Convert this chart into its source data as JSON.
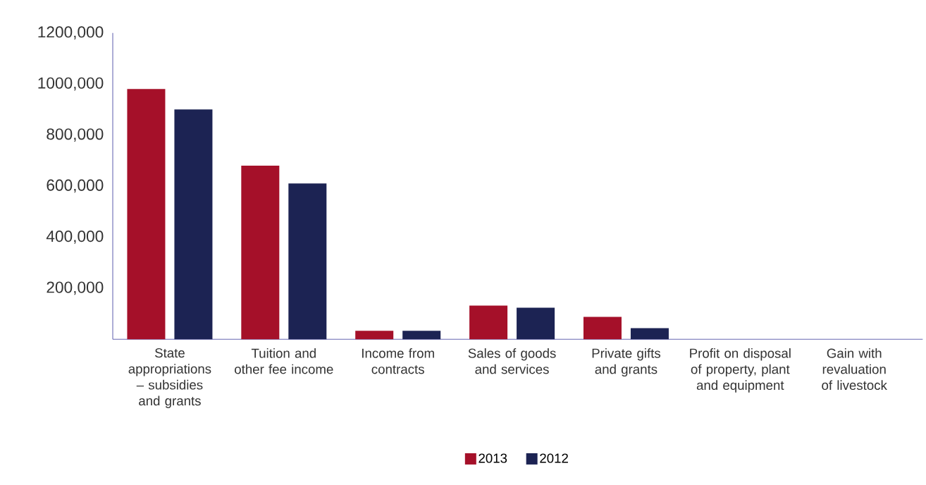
{
  "chart_data": {
    "type": "bar",
    "categories": [
      "State appropriations – subsidies and grants",
      "Tuition and other fee income",
      "Income from contracts",
      "Sales of goods and services",
      "Private gifts and grants",
      "Profit on disposal of property, plant and equipment",
      "Gain with revaluation of livestock"
    ],
    "series": [
      {
        "name": "2013",
        "color": "#a51029",
        "values": [
          980000,
          680000,
          33000,
          132000,
          88000,
          0,
          0
        ]
      },
      {
        "name": "2012",
        "color": "#1c2353",
        "values": [
          900000,
          610000,
          33000,
          124000,
          44000,
          0,
          0
        ]
      }
    ],
    "ylim": [
      0,
      1200000
    ],
    "yticks": [
      {
        "value": 200000,
        "label": "200,000"
      },
      {
        "value": 400000,
        "label": "400,000"
      },
      {
        "value": 600000,
        "label": "600,000"
      },
      {
        "value": 800000,
        "label": "800,000"
      },
      {
        "value": 1000000,
        "label": "1000,000"
      },
      {
        "value": 1200000,
        "label": "1200,000"
      }
    ],
    "grid": false,
    "legend": "bottom"
  }
}
